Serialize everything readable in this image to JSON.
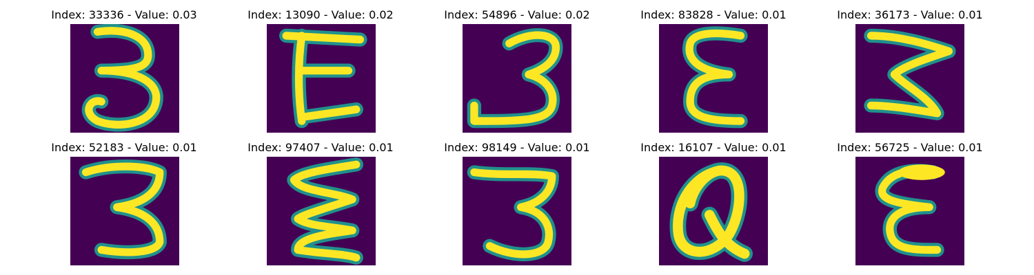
{
  "colors": {
    "background": "#440154",
    "stroke_edge": "#21918c",
    "stroke_mid": "#5ec962",
    "stroke_core": "#fde725"
  },
  "panels": [
    {
      "title": "Index: 33336 - Value: 0.03",
      "glyph": "digit-3"
    },
    {
      "title": "Index: 13090 - Value: 0.02",
      "glyph": "letter-E"
    },
    {
      "title": "Index: 54896 - Value: 0.02",
      "glyph": "digit-3"
    },
    {
      "title": "Index: 83828 - Value: 0.01",
      "glyph": "letter-E"
    },
    {
      "title": "Index: 36173 - Value: 0.01",
      "glyph": "digit-3"
    },
    {
      "title": "Index: 52183 - Value: 0.01",
      "glyph": "digit-3"
    },
    {
      "title": "Index: 97407 - Value: 0.01",
      "glyph": "zigzag-E"
    },
    {
      "title": "Index: 98149 - Value: 0.01",
      "glyph": "digit-3"
    },
    {
      "title": "Index: 16107 - Value: 0.01",
      "glyph": "letter-Q"
    },
    {
      "title": "Index: 56725 - Value: 0.01",
      "glyph": "letter-E"
    }
  ]
}
